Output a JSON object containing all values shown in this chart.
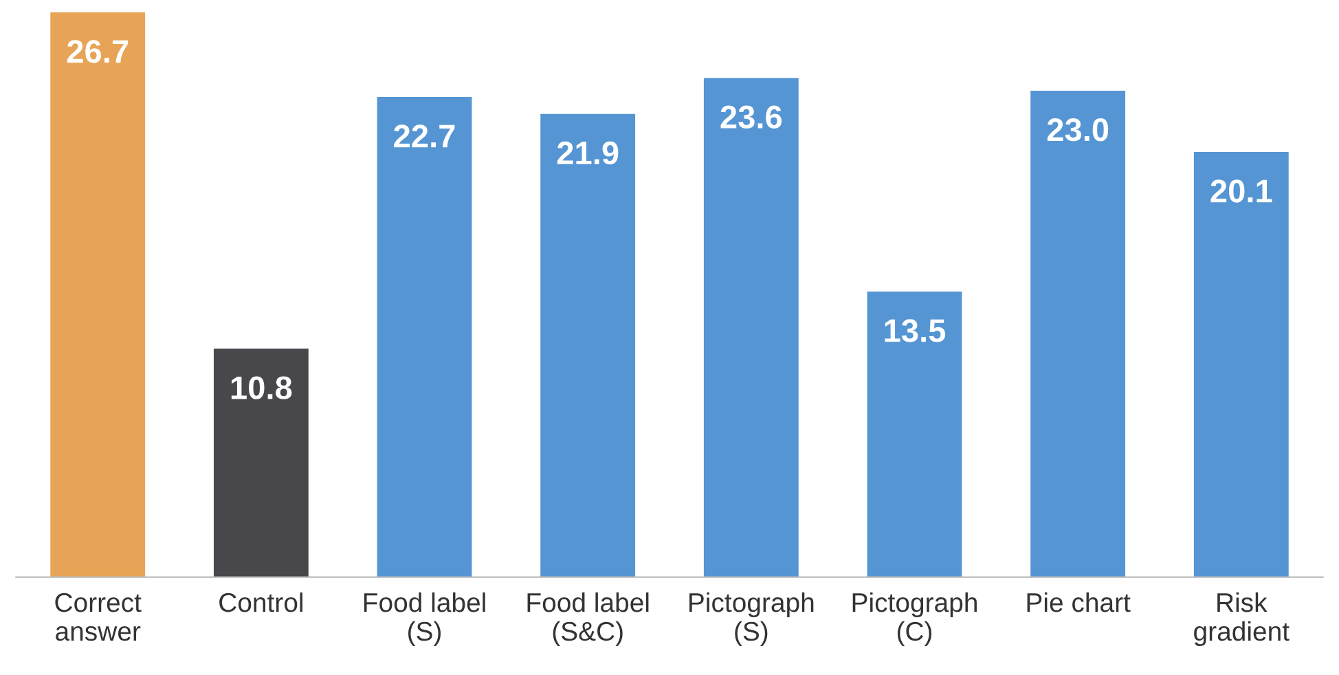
{
  "chart_data": {
    "type": "bar",
    "categories": [
      "Correct\nanswer",
      "Control",
      "Food label\n(S)",
      "Food label\n(S&C)",
      "Pictograph\n(S)",
      "Pictograph\n(C)",
      "Pie chart",
      "Risk\ngradient"
    ],
    "values": [
      26.7,
      10.8,
      22.7,
      21.9,
      23.6,
      13.5,
      23.0,
      20.1
    ],
    "colors": [
      "#e8a456",
      "#48484c",
      "#5595d3",
      "#5595d3",
      "#5595d3",
      "#5595d3",
      "#5595d3",
      "#5595d3"
    ],
    "value_labels": [
      "26.7",
      "10.8",
      "22.7",
      "21.9",
      "23.6",
      "13.5",
      "23.0",
      "20.1"
    ],
    "tick_labels": "x",
    "grid": false,
    "legend": false
  }
}
